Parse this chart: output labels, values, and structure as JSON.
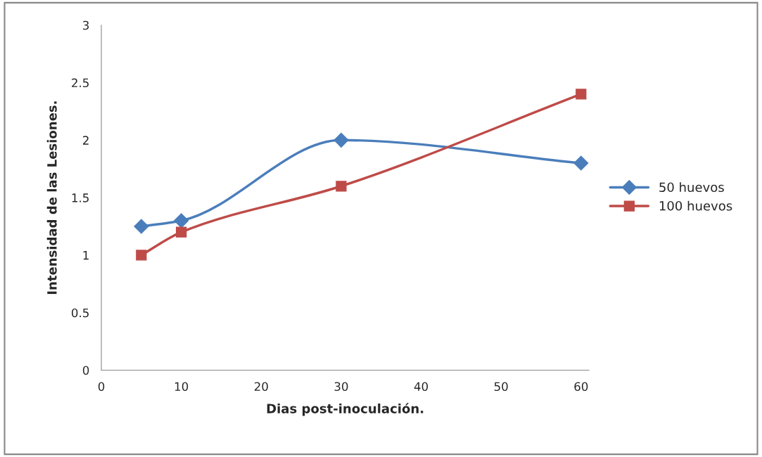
{
  "chart_data": {
    "type": "line",
    "xlabel": "Dias post-inoculación.",
    "ylabel": "Intensidad de las Lesiones.",
    "x": [
      5,
      10,
      30,
      60
    ],
    "series": [
      {
        "name": "50 huevos",
        "color": "#4a7ebb",
        "marker": "diamond",
        "values": [
          1.25,
          1.3,
          2.0,
          1.8
        ]
      },
      {
        "name": "100 huevos",
        "color": "#be4b48",
        "marker": "square",
        "values": [
          1.0,
          1.2,
          1.6,
          2.4
        ]
      }
    ],
    "xlim": [
      0,
      61
    ],
    "xticks": [
      0,
      10,
      20,
      30,
      40,
      50,
      60
    ],
    "ylim": [
      0,
      3
    ],
    "yticks": [
      0,
      0.5,
      1,
      1.5,
      2,
      2.5,
      3
    ],
    "grid": false,
    "legend": "right",
    "line_style": "solid"
  }
}
